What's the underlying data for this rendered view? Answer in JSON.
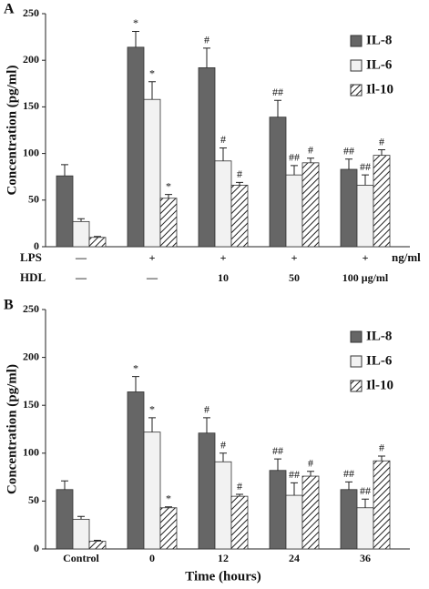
{
  "chart_data": [
    {
      "type": "bar",
      "panel_label": "A",
      "y_label": "Concentration (pg/ml)",
      "rows": [
        {
          "label": "LPS",
          "values": [
            "—",
            "+",
            "+",
            "+",
            "+"
          ],
          "unit": "ng/ml"
        },
        {
          "label": "HDL",
          "values": [
            "—",
            "—",
            "10",
            "50",
            "100 μg/ml"
          ]
        }
      ],
      "series": [
        {
          "name": "IL-8",
          "color": "#666666",
          "hatch": false,
          "values": [
            76,
            214,
            192,
            139,
            83
          ],
          "errors": [
            12,
            17,
            21,
            18,
            11
          ],
          "annotations": [
            null,
            "*",
            "#",
            "##",
            "##"
          ]
        },
        {
          "name": "IL-6",
          "color": "#f2f2f2",
          "hatch": false,
          "values": [
            27,
            158,
            92,
            77,
            66
          ],
          "errors": [
            3,
            19,
            14,
            10,
            11
          ],
          "annotations": [
            null,
            "*",
            "#",
            "##",
            "##"
          ]
        },
        {
          "name": "Il-10",
          "color": "#ffffff",
          "hatch": true,
          "values": [
            10,
            52,
            66,
            90,
            98
          ],
          "errors": [
            1,
            4,
            3,
            5,
            6
          ],
          "annotations": [
            null,
            "*",
            "#",
            "#",
            "#"
          ]
        }
      ],
      "ylim": [
        0,
        250
      ],
      "yticks": [
        0,
        50,
        100,
        150,
        200,
        250
      ],
      "legend": "top-right"
    },
    {
      "type": "bar",
      "panel_label": "B",
      "y_label": "Concentration (pg/ml)",
      "x_label": "Time (hours)",
      "categories": [
        "Control",
        "0",
        "12",
        "24",
        "36"
      ],
      "series": [
        {
          "name": "IL-8",
          "color": "#666666",
          "hatch": false,
          "values": [
            62,
            164,
            121,
            82,
            62
          ],
          "errors": [
            9,
            16,
            16,
            12,
            8
          ],
          "annotations": [
            null,
            "*",
            "#",
            "##",
            "##"
          ]
        },
        {
          "name": "IL-6",
          "color": "#f2f2f2",
          "hatch": false,
          "values": [
            31,
            122,
            91,
            56,
            43
          ],
          "errors": [
            3,
            15,
            9,
            13,
            9
          ],
          "annotations": [
            null,
            "*",
            "#",
            "##",
            "##"
          ]
        },
        {
          "name": "Il-10",
          "color": "#ffffff",
          "hatch": true,
          "values": [
            8,
            43,
            55,
            76,
            92
          ],
          "errors": [
            1,
            1,
            2,
            5,
            5
          ],
          "annotations": [
            null,
            "*",
            "#",
            "#",
            "#"
          ]
        }
      ],
      "ylim": [
        0,
        250
      ],
      "yticks": [
        0,
        50,
        100,
        150,
        200,
        250
      ],
      "legend": "top-right"
    }
  ]
}
